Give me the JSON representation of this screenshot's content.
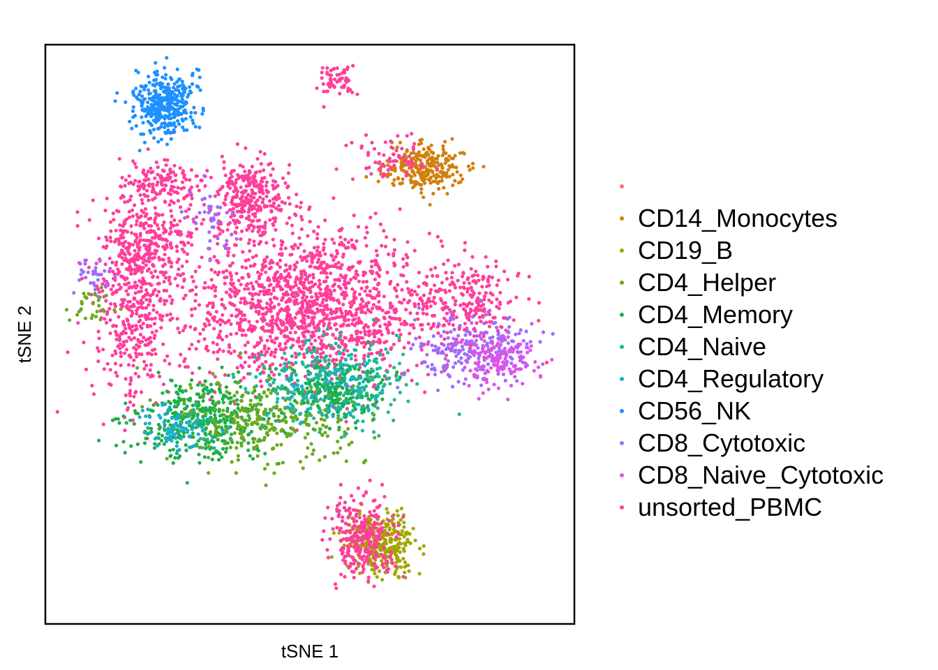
{
  "chart_data": {
    "type": "scatter",
    "title": "",
    "xlabel": "tSNE 1",
    "ylabel": "tSNE 2",
    "axis_ticks_shown": false,
    "grid": false,
    "legend_position": "right",
    "legend": [
      {
        "name": "",
        "color": "#F8766D"
      },
      {
        "name": "CD14_Monocytes",
        "color": "#D0800F"
      },
      {
        "name": "CD19_B",
        "color": "#A3A500"
      },
      {
        "name": "CD4_Helper",
        "color": "#6BAA1E"
      },
      {
        "name": "CD4_Memory",
        "color": "#1FAE4B"
      },
      {
        "name": "CD4_Naive",
        "color": "#1FB89A"
      },
      {
        "name": "CD4_Regulatory",
        "color": "#1AAFCB"
      },
      {
        "name": "CD56_NK",
        "color": "#1E90FF"
      },
      {
        "name": "CD8_Cytotoxic",
        "color": "#A06CFF"
      },
      {
        "name": "CD8_Naive_Cytotoxic",
        "color": "#E052E8"
      },
      {
        "name": "unsorted_PBMC",
        "color": "#FF3F9A"
      }
    ],
    "xlim": [
      -40,
      40
    ],
    "ylim": [
      -40,
      40
    ],
    "clusters": [
      {
        "series": "unsorted_PBMC",
        "cx": 0,
        "cy": 4,
        "sx": 13,
        "sy": 7,
        "n": 1500
      },
      {
        "series": "unsorted_PBMC",
        "cx": -27,
        "cy": 5,
        "sx": 4,
        "sy": 10,
        "n": 500
      },
      {
        "series": "unsorted_PBMC",
        "cx": -23,
        "cy": 13,
        "sx": 4,
        "sy": 3,
        "n": 150
      },
      {
        "series": "unsorted_PBMC",
        "cx": -9,
        "cy": 19,
        "sx": 3.5,
        "sy": 3.5,
        "n": 300
      },
      {
        "series": "unsorted_PBMC",
        "cx": -22,
        "cy": 21,
        "sx": 4,
        "sy": 2,
        "n": 150
      },
      {
        "series": "unsorted_PBMC",
        "cx": 24,
        "cy": 4,
        "sx": 5,
        "sy": 4,
        "n": 220
      },
      {
        "series": "unsorted_PBMC",
        "cx": 4,
        "cy": 35,
        "sx": 2,
        "sy": 1.5,
        "n": 60
      },
      {
        "series": "unsorted_PBMC",
        "cx": 12,
        "cy": 24,
        "sx": 4,
        "sy": 2,
        "n": 60
      },
      {
        "series": "unsorted_PBMC",
        "cx": 8,
        "cy": -28,
        "sx": 3.5,
        "sy": 3.5,
        "n": 280
      },
      {
        "series": "CD56_NK",
        "cx": -22,
        "cy": 32,
        "sx": 3,
        "sy": 3,
        "n": 380
      },
      {
        "series": "CD14_Monocytes",
        "cx": 17,
        "cy": 23,
        "sx": 4,
        "sy": 2,
        "n": 260
      },
      {
        "series": "CD19_B",
        "cx": 11,
        "cy": -29,
        "sx": 3.5,
        "sy": 2.5,
        "n": 320
      },
      {
        "series": "CD4_Memory",
        "cx": -16,
        "cy": -12,
        "sx": 7,
        "sy": 3.5,
        "n": 420
      },
      {
        "series": "CD4_Memory",
        "cx": 4,
        "cy": -8,
        "sx": 5,
        "sy": 3,
        "n": 150
      },
      {
        "series": "CD4_Naive",
        "cx": 3,
        "cy": -7,
        "sx": 7,
        "sy": 4,
        "n": 380
      },
      {
        "series": "CD4_Helper",
        "cx": -6,
        "cy": -12,
        "sx": 9,
        "sy": 4,
        "n": 260
      },
      {
        "series": "CD4_Regulatory",
        "cx": -20,
        "cy": -13,
        "sx": 4,
        "sy": 2,
        "n": 90
      },
      {
        "series": "CD4_Regulatory",
        "cx": 2,
        "cy": -8,
        "sx": 6,
        "sy": 3,
        "n": 60
      },
      {
        "series": "CD8_Cytotoxic",
        "cx": 25,
        "cy": -2,
        "sx": 6,
        "sy": 3,
        "n": 220
      },
      {
        "series": "CD8_Cytotoxic",
        "cx": -33,
        "cy": 8,
        "sx": 2,
        "sy": 2,
        "n": 30
      },
      {
        "series": "CD8_Cytotoxic",
        "cx": -15,
        "cy": 16,
        "sx": 2,
        "sy": 4,
        "n": 40
      },
      {
        "series": "CD8_Naive_Cytotoxic",
        "cx": 28,
        "cy": -4,
        "sx": 4,
        "sy": 2.5,
        "n": 120
      },
      {
        "series": "CD4_Helper",
        "cx": -33,
        "cy": 4,
        "sx": 2,
        "sy": 2,
        "n": 30
      }
    ]
  }
}
